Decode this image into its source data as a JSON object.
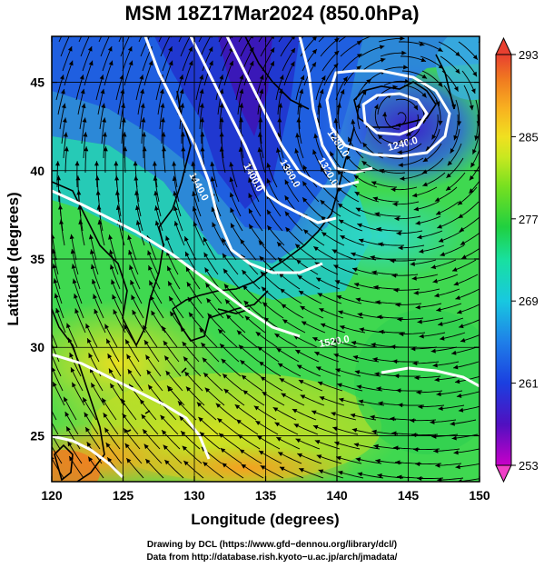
{
  "title": "MSM 18Z17Mar2024 (850.0hPa)",
  "x_axis": {
    "label": "Longitude (degrees)",
    "ticks": [
      "120",
      "125",
      "130",
      "135",
      "140",
      "145",
      "150"
    ],
    "tick_values": [
      120,
      125,
      130,
      135,
      140,
      145,
      150
    ],
    "range": [
      120,
      150
    ]
  },
  "y_axis": {
    "label": "Latitude  (degrees)",
    "ticks": [
      "25",
      "30",
      "35",
      "40",
      "45"
    ],
    "tick_values": [
      25,
      30,
      35,
      40,
      45
    ],
    "range": [
      22.4,
      47.6
    ]
  },
  "colorbar": {
    "ticks": [
      "293",
      "285",
      "277",
      "269",
      "261",
      "253"
    ],
    "tick_values": [
      293,
      285,
      277,
      269,
      261,
      253
    ],
    "colors": [
      "#c800c8",
      "#3a0fc0",
      "#1b3fe0",
      "#1f7fe8",
      "#18c8e0",
      "#18e0a8",
      "#20d040",
      "#78e020",
      "#c8e820",
      "#f0e020",
      "#f8b020",
      "#f07a20",
      "#e84030"
    ]
  },
  "contour_labels": [
    "1440.0",
    "1400.0",
    "1360.0",
    "1320.0",
    "1280.0",
    "1240.0",
    "1520.0"
  ],
  "credits": {
    "line1": "Drawing by DCL (https://www.gfd−dennou.org/library/dcl/)",
    "line2": "Data from http://database.rish.kyoto−u.ac.jp/arch/jmadata/"
  }
}
